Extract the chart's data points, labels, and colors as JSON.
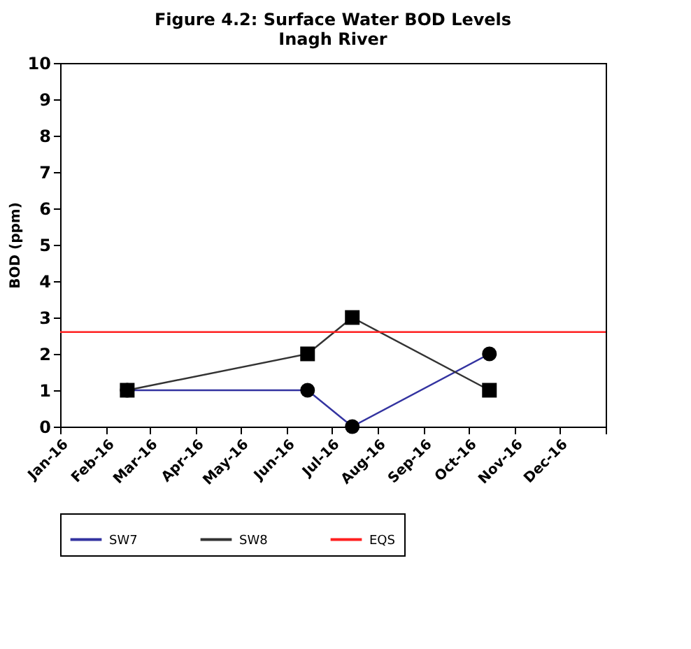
{
  "chart_data": {
    "type": "line",
    "title": "Figure 4.2: Surface Water BOD Levels",
    "subtitle": "Inagh River",
    "ylabel": "BOD (ppm)",
    "series": [
      {
        "name": "SW7",
        "color": "#3333a0",
        "marker": "circle",
        "x": [
          "2016-02-15",
          "2016-06-15",
          "2016-07-15",
          "2016-10-15"
        ],
        "values": [
          1,
          1,
          0,
          2
        ]
      },
      {
        "name": "SW8",
        "color": "#333333",
        "marker": "square",
        "x": [
          "2016-02-15",
          "2016-06-15",
          "2016-07-15",
          "2016-10-15"
        ],
        "values": [
          1,
          2,
          3,
          1
        ]
      }
    ],
    "ref_lines": [
      {
        "axis": "y",
        "value": 2.6,
        "label": "EQS",
        "color": "#ff2020"
      }
    ],
    "xlim": [
      "2016-01-01",
      "2017-01-01"
    ],
    "xticks": [
      {
        "value": "2016-01-01",
        "label": "Jan-16"
      },
      {
        "value": "2016-02-01",
        "label": "Feb-16"
      },
      {
        "value": "2016-03-01",
        "label": "Mar-16"
      },
      {
        "value": "2016-04-01",
        "label": "Apr-16"
      },
      {
        "value": "2016-05-01",
        "label": "May-16"
      },
      {
        "value": "2016-06-01",
        "label": "Jun-16"
      },
      {
        "value": "2016-07-01",
        "label": "Jul-16"
      },
      {
        "value": "2016-08-01",
        "label": "Aug-16"
      },
      {
        "value": "2016-09-01",
        "label": "Sep-16"
      },
      {
        "value": "2016-10-01",
        "label": "Oct-16"
      },
      {
        "value": "2016-11-01",
        "label": "Nov-16"
      },
      {
        "value": "2016-12-01",
        "label": "Dec-16"
      },
      {
        "value": "2017-01-01",
        "label": null
      }
    ],
    "ylim": [
      0,
      10
    ],
    "yticks": [
      0,
      1,
      2,
      3,
      4,
      5,
      6,
      7,
      8,
      9,
      10
    ],
    "grid": false,
    "legend": "bottom"
  }
}
